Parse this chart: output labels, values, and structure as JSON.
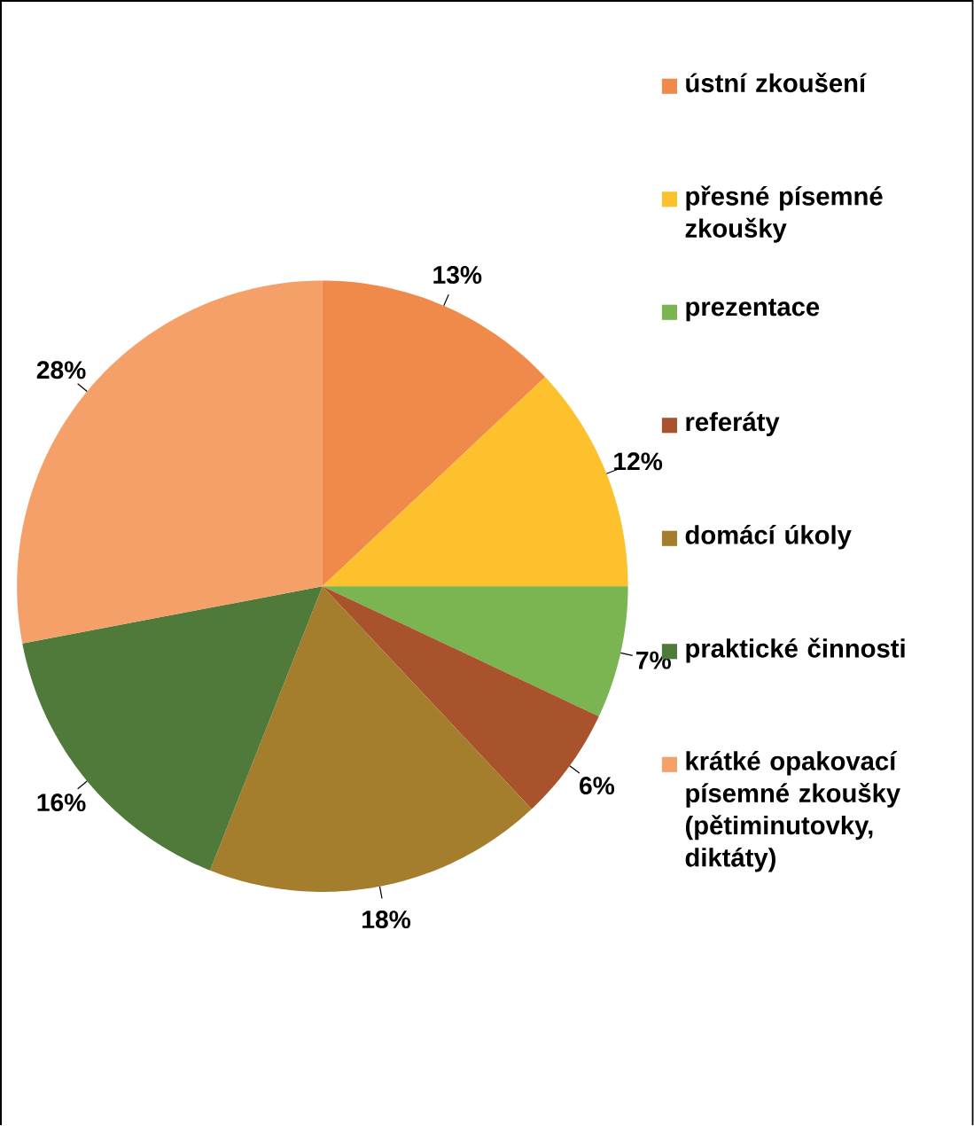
{
  "chart_data": {
    "type": "pie",
    "categories": [
      "ústní zkoušení",
      "přesné písemné zkoušky",
      "prezentace",
      "referáty",
      "domácí úkoly",
      "praktické činnosti",
      "krátké opakovací písemné zkoušky (pětiminutovky, diktáty)"
    ],
    "values": [
      13,
      12,
      7,
      6,
      18,
      16,
      28
    ],
    "colors": [
      "#f08a4b",
      "#fdc12e",
      "#7ab552",
      "#a9532c",
      "#a47e2c",
      "#4f7a3a",
      "#f4a068"
    ],
    "value_labels": [
      "13%",
      "12%",
      "7%",
      "6%",
      "18%",
      "16%",
      "28%"
    ],
    "legend": "right"
  }
}
